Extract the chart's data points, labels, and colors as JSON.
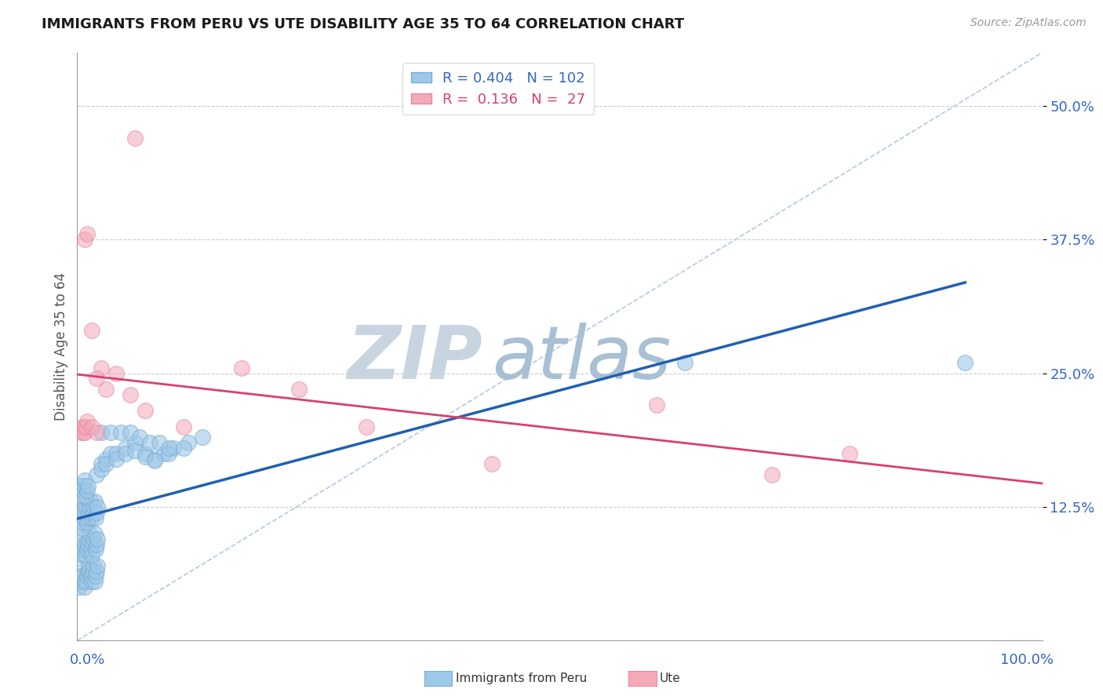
{
  "title": "IMMIGRANTS FROM PERU VS UTE DISABILITY AGE 35 TO 64 CORRELATION CHART",
  "source": "Source: ZipAtlas.com",
  "ylabel": "Disability Age 35 to 64",
  "ytick_values": [
    0.125,
    0.25,
    0.375,
    0.5
  ],
  "xlim": [
    0.0,
    1.0
  ],
  "ylim": [
    0.0,
    0.55
  ],
  "blue_fill": "#9ec8e8",
  "blue_edge": "#7aadd4",
  "pink_fill": "#f4a8b8",
  "pink_edge": "#e888a0",
  "blue_line_color": "#2060b0",
  "pink_line_color": "#d84070",
  "ref_line_color": "#a8c4e0",
  "grid_color": "#cccccc",
  "blue_R": 0.404,
  "blue_N": 102,
  "pink_R": 0.136,
  "pink_N": 27,
  "title_color": "#1a1a1a",
  "axis_tick_color": "#3366cc",
  "ylabel_color": "#555555",
  "watermark_color": "#ccd8e8",
  "bg_color": "#ffffff",
  "blue_scatter_x": [
    0.002,
    0.003,
    0.004,
    0.005,
    0.006,
    0.007,
    0.008,
    0.009,
    0.01,
    0.011,
    0.012,
    0.013,
    0.014,
    0.015,
    0.016,
    0.017,
    0.018,
    0.019,
    0.02,
    0.021,
    0.002,
    0.003,
    0.004,
    0.005,
    0.006,
    0.007,
    0.008,
    0.009,
    0.01,
    0.011,
    0.012,
    0.013,
    0.014,
    0.015,
    0.016,
    0.017,
    0.018,
    0.019,
    0.02,
    0.021,
    0.002,
    0.003,
    0.004,
    0.005,
    0.006,
    0.007,
    0.008,
    0.009,
    0.01,
    0.011,
    0.012,
    0.013,
    0.014,
    0.015,
    0.016,
    0.017,
    0.018,
    0.019,
    0.02,
    0.021,
    0.002,
    0.003,
    0.004,
    0.005,
    0.006,
    0.007,
    0.008,
    0.009,
    0.01,
    0.011,
    0.025,
    0.03,
    0.035,
    0.04,
    0.05,
    0.06,
    0.07,
    0.08,
    0.09,
    0.1,
    0.115,
    0.13,
    0.02,
    0.025,
    0.03,
    0.04,
    0.05,
    0.06,
    0.07,
    0.08,
    0.095,
    0.11,
    0.63,
    0.92,
    0.025,
    0.035,
    0.045,
    0.055,
    0.065,
    0.075,
    0.085,
    0.095
  ],
  "blue_scatter_y": [
    0.05,
    0.055,
    0.06,
    0.065,
    0.06,
    0.055,
    0.05,
    0.055,
    0.06,
    0.065,
    0.07,
    0.065,
    0.06,
    0.055,
    0.065,
    0.07,
    0.055,
    0.06,
    0.065,
    0.07,
    0.08,
    0.085,
    0.09,
    0.095,
    0.08,
    0.085,
    0.09,
    0.08,
    0.085,
    0.09,
    0.095,
    0.1,
    0.085,
    0.08,
    0.09,
    0.095,
    0.1,
    0.085,
    0.09,
    0.095,
    0.11,
    0.115,
    0.12,
    0.105,
    0.11,
    0.115,
    0.12,
    0.125,
    0.11,
    0.115,
    0.12,
    0.125,
    0.13,
    0.115,
    0.12,
    0.125,
    0.13,
    0.115,
    0.12,
    0.125,
    0.135,
    0.14,
    0.145,
    0.135,
    0.14,
    0.145,
    0.15,
    0.135,
    0.14,
    0.145,
    0.165,
    0.17,
    0.175,
    0.175,
    0.18,
    0.185,
    0.175,
    0.17,
    0.175,
    0.18,
    0.185,
    0.19,
    0.155,
    0.16,
    0.165,
    0.17,
    0.175,
    0.178,
    0.172,
    0.168,
    0.175,
    0.18,
    0.26,
    0.26,
    0.195,
    0.195,
    0.195,
    0.195,
    0.19,
    0.185,
    0.185,
    0.18
  ],
  "pink_scatter_x": [
    0.004,
    0.005,
    0.006,
    0.007,
    0.008,
    0.009,
    0.01,
    0.015,
    0.02,
    0.025,
    0.03,
    0.008,
    0.01,
    0.015,
    0.02,
    0.04,
    0.055,
    0.07,
    0.11,
    0.17,
    0.23,
    0.3,
    0.43,
    0.6,
    0.72,
    0.8,
    0.06
  ],
  "pink_scatter_y": [
    0.195,
    0.2,
    0.195,
    0.2,
    0.195,
    0.2,
    0.205,
    0.2,
    0.195,
    0.255,
    0.235,
    0.375,
    0.38,
    0.29,
    0.245,
    0.25,
    0.23,
    0.215,
    0.2,
    0.255,
    0.235,
    0.2,
    0.165,
    0.22,
    0.155,
    0.175,
    0.47
  ]
}
